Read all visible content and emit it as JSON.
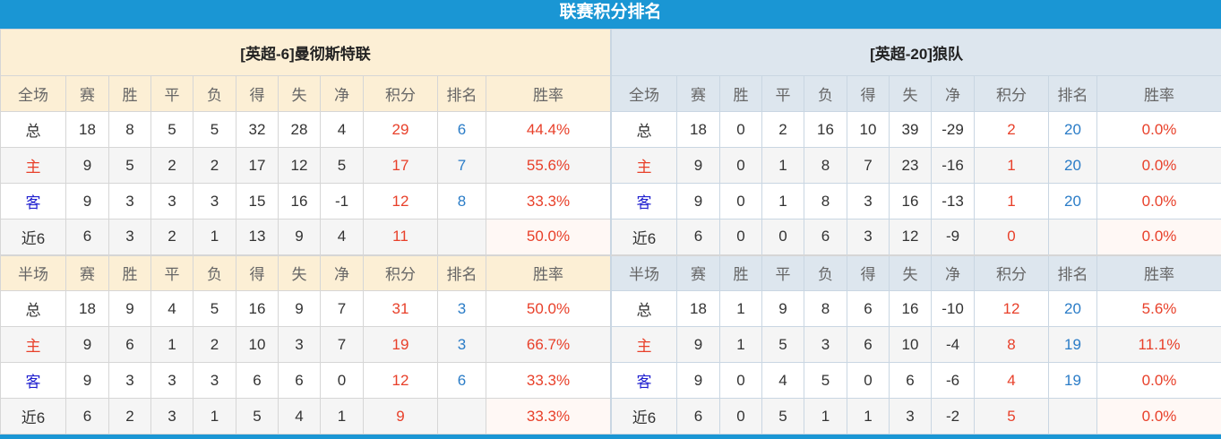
{
  "title": "联赛积分排名",
  "teams": [
    {
      "name": "[英超-6]曼彻斯特联",
      "full_header": [
        "全场",
        "赛",
        "胜",
        "平",
        "负",
        "得",
        "失",
        "净",
        "积分",
        "排名",
        "胜率"
      ],
      "full_rows": [
        [
          "总",
          "18",
          "8",
          "5",
          "5",
          "32",
          "28",
          "4",
          "29",
          "6",
          "44.4%"
        ],
        [
          "主",
          "9",
          "5",
          "2",
          "2",
          "17",
          "12",
          "5",
          "17",
          "7",
          "55.6%"
        ],
        [
          "客",
          "9",
          "3",
          "3",
          "3",
          "15",
          "16",
          "-1",
          "12",
          "8",
          "33.3%"
        ],
        [
          "近6",
          "6",
          "3",
          "2",
          "1",
          "13",
          "9",
          "4",
          "11",
          "",
          "50.0%"
        ]
      ],
      "half_header": [
        "半场",
        "赛",
        "胜",
        "平",
        "负",
        "得",
        "失",
        "净",
        "积分",
        "排名",
        "胜率"
      ],
      "half_rows": [
        [
          "总",
          "18",
          "9",
          "4",
          "5",
          "16",
          "9",
          "7",
          "31",
          "3",
          "50.0%"
        ],
        [
          "主",
          "9",
          "6",
          "1",
          "2",
          "10",
          "3",
          "7",
          "19",
          "3",
          "66.7%"
        ],
        [
          "客",
          "9",
          "3",
          "3",
          "3",
          "6",
          "6",
          "0",
          "12",
          "6",
          "33.3%"
        ],
        [
          "近6",
          "6",
          "2",
          "3",
          "1",
          "5",
          "4",
          "1",
          "9",
          "",
          "33.3%"
        ]
      ]
    },
    {
      "name": "[英超-20]狼队",
      "full_header": [
        "全场",
        "赛",
        "胜",
        "平",
        "负",
        "得",
        "失",
        "净",
        "积分",
        "排名",
        "胜率"
      ],
      "full_rows": [
        [
          "总",
          "18",
          "0",
          "2",
          "16",
          "10",
          "39",
          "-29",
          "2",
          "20",
          "0.0%"
        ],
        [
          "主",
          "9",
          "0",
          "1",
          "8",
          "7",
          "23",
          "-16",
          "1",
          "20",
          "0.0%"
        ],
        [
          "客",
          "9",
          "0",
          "1",
          "8",
          "3",
          "16",
          "-13",
          "1",
          "20",
          "0.0%"
        ],
        [
          "近6",
          "6",
          "0",
          "0",
          "6",
          "3",
          "12",
          "-9",
          "0",
          "",
          "0.0%"
        ]
      ],
      "half_header": [
        "半场",
        "赛",
        "胜",
        "平",
        "负",
        "得",
        "失",
        "净",
        "积分",
        "排名",
        "胜率"
      ],
      "half_rows": [
        [
          "总",
          "18",
          "1",
          "9",
          "8",
          "6",
          "16",
          "-10",
          "12",
          "20",
          "5.6%"
        ],
        [
          "主",
          "9",
          "1",
          "5",
          "3",
          "6",
          "10",
          "-4",
          "8",
          "19",
          "11.1%"
        ],
        [
          "客",
          "9",
          "0",
          "4",
          "5",
          "0",
          "6",
          "-6",
          "4",
          "19",
          "0.0%"
        ],
        [
          "近6",
          "6",
          "0",
          "5",
          "1",
          "1",
          "3",
          "-2",
          "5",
          "",
          "0.0%"
        ]
      ]
    }
  ],
  "colors": {
    "accent": "#1a96d4",
    "points": "#e8402a",
    "rank": "#2a7cc7",
    "home": "#e8402a",
    "away": "#2020d0"
  }
}
